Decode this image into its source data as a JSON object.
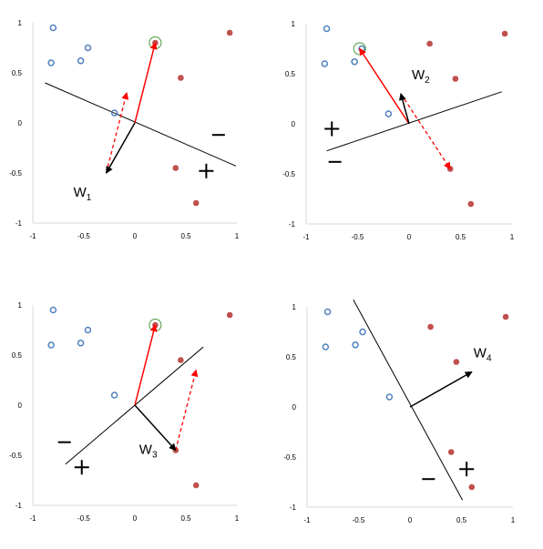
{
  "figure": {
    "colors": {
      "blue_circle": "#4f81bd",
      "red_point": "#c0504d",
      "red_arrow": "#ff0000",
      "weight_arrow": "#000000",
      "highlight_ring": "#4a9a3a"
    },
    "tick_labels": {
      "x": [
        "-1",
        "-0.5",
        "0",
        "0.5",
        "1"
      ],
      "y": [
        "1",
        "0.5",
        "0",
        "-0.5",
        "-1"
      ]
    },
    "panels": [
      {
        "id": "panel-1",
        "weight_label": "W",
        "weight_subscript": "1",
        "weight_vector": [
          -0.28,
          -0.5
        ],
        "boundary": [
          [
            -0.88,
            0.4
          ],
          [
            0.99,
            -0.43
          ]
        ],
        "plus_region": [
          0.7,
          -0.48
        ],
        "minus_region": [
          0.82,
          -0.12
        ],
        "misclassified_point": [
          0.2,
          0.8
        ],
        "update_arrow": [
          0.2,
          0.8
        ],
        "dashed_arrow": [
          [
            -0.28,
            -0.5
          ],
          [
            -0.08,
            0.3
          ]
        ]
      },
      {
        "id": "panel-2",
        "weight_label": "W",
        "weight_subscript": "2",
        "weight_vector": [
          -0.08,
          0.3
        ],
        "boundary": [
          [
            -0.8,
            -0.27
          ],
          [
            0.9,
            0.32
          ]
        ],
        "plus_region": [
          -0.75,
          -0.05
        ],
        "minus_region": [
          -0.72,
          -0.38
        ],
        "misclassified_point": [
          -0.48,
          0.75
        ],
        "update_arrow": [
          -0.48,
          0.75
        ],
        "dashed_arrow": [
          [
            -0.08,
            0.3
          ],
          [
            0.4,
            -0.45
          ]
        ]
      },
      {
        "id": "panel-3",
        "weight_label": "W",
        "weight_subscript": "3",
        "weight_vector": [
          0.4,
          -0.45
        ],
        "boundary": [
          [
            -0.68,
            -0.59
          ],
          [
            0.67,
            0.58
          ]
        ],
        "plus_region": [
          -0.52,
          -0.62
        ],
        "minus_region": [
          -0.69,
          -0.37
        ],
        "misclassified_point": [
          0.2,
          0.8
        ],
        "update_arrow": [
          0.2,
          0.8
        ],
        "dashed_arrow": [
          [
            0.4,
            -0.45
          ],
          [
            0.6,
            0.35
          ]
        ]
      },
      {
        "id": "panel-4",
        "weight_label": "W",
        "weight_subscript": "4",
        "weight_vector": [
          0.6,
          0.35
        ],
        "boundary": [
          [
            -0.55,
            1.07
          ],
          [
            0.51,
            -0.93
          ]
        ],
        "plus_region": [
          0.55,
          -0.62
        ],
        "minus_region": [
          0.18,
          -0.72
        ],
        "misclassified_point": null,
        "update_arrow": null,
        "dashed_arrow": null
      }
    ],
    "points": {
      "negative_class": [
        [
          -0.8,
          0.95
        ],
        [
          -0.82,
          0.6
        ],
        [
          -0.53,
          0.62
        ],
        [
          -0.46,
          0.75
        ],
        [
          -0.2,
          0.1
        ]
      ],
      "positive_class": [
        [
          0.2,
          0.8
        ],
        [
          0.93,
          0.9
        ],
        [
          0.45,
          0.45
        ],
        [
          0.4,
          -0.45
        ],
        [
          0.6,
          -0.8
        ]
      ]
    }
  }
}
